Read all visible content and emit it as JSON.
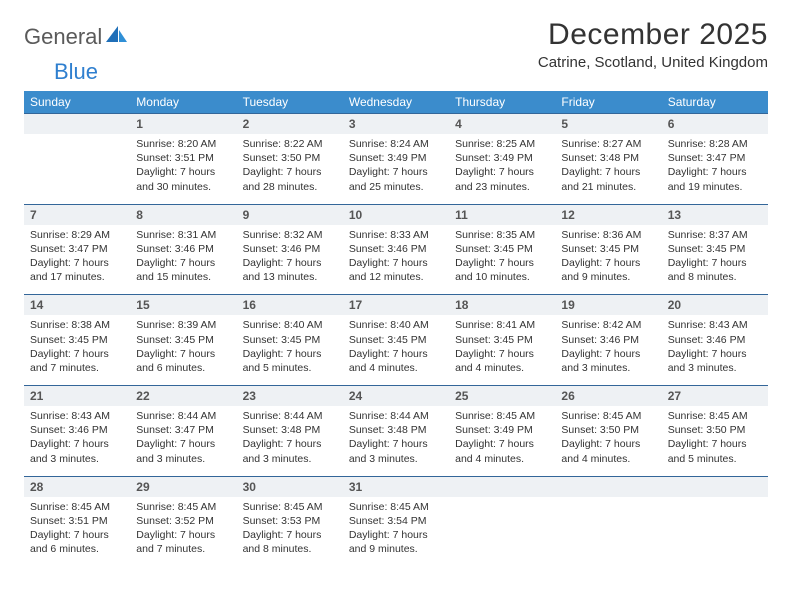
{
  "brand": {
    "word1": "General",
    "word2": "Blue"
  },
  "title": "December 2025",
  "location": "Catrine, Scotland, United Kingdom",
  "colors": {
    "header_bg": "#3b8ccc",
    "header_text": "#ffffff",
    "daynum_bg": "#eef1f4",
    "daynum_border": "#336699",
    "body_text": "#333333",
    "logo_gray": "#5a5a5a",
    "logo_blue": "#2f7fcf"
  },
  "dow": [
    "Sunday",
    "Monday",
    "Tuesday",
    "Wednesday",
    "Thursday",
    "Friday",
    "Saturday"
  ],
  "weeks": [
    [
      null,
      {
        "n": "1",
        "sr": "Sunrise: 8:20 AM",
        "ss": "Sunset: 3:51 PM",
        "dl": "Daylight: 7 hours and 30 minutes."
      },
      {
        "n": "2",
        "sr": "Sunrise: 8:22 AM",
        "ss": "Sunset: 3:50 PM",
        "dl": "Daylight: 7 hours and 28 minutes."
      },
      {
        "n": "3",
        "sr": "Sunrise: 8:24 AM",
        "ss": "Sunset: 3:49 PM",
        "dl": "Daylight: 7 hours and 25 minutes."
      },
      {
        "n": "4",
        "sr": "Sunrise: 8:25 AM",
        "ss": "Sunset: 3:49 PM",
        "dl": "Daylight: 7 hours and 23 minutes."
      },
      {
        "n": "5",
        "sr": "Sunrise: 8:27 AM",
        "ss": "Sunset: 3:48 PM",
        "dl": "Daylight: 7 hours and 21 minutes."
      },
      {
        "n": "6",
        "sr": "Sunrise: 8:28 AM",
        "ss": "Sunset: 3:47 PM",
        "dl": "Daylight: 7 hours and 19 minutes."
      }
    ],
    [
      {
        "n": "7",
        "sr": "Sunrise: 8:29 AM",
        "ss": "Sunset: 3:47 PM",
        "dl": "Daylight: 7 hours and 17 minutes."
      },
      {
        "n": "8",
        "sr": "Sunrise: 8:31 AM",
        "ss": "Sunset: 3:46 PM",
        "dl": "Daylight: 7 hours and 15 minutes."
      },
      {
        "n": "9",
        "sr": "Sunrise: 8:32 AM",
        "ss": "Sunset: 3:46 PM",
        "dl": "Daylight: 7 hours and 13 minutes."
      },
      {
        "n": "10",
        "sr": "Sunrise: 8:33 AM",
        "ss": "Sunset: 3:46 PM",
        "dl": "Daylight: 7 hours and 12 minutes."
      },
      {
        "n": "11",
        "sr": "Sunrise: 8:35 AM",
        "ss": "Sunset: 3:45 PM",
        "dl": "Daylight: 7 hours and 10 minutes."
      },
      {
        "n": "12",
        "sr": "Sunrise: 8:36 AM",
        "ss": "Sunset: 3:45 PM",
        "dl": "Daylight: 7 hours and 9 minutes."
      },
      {
        "n": "13",
        "sr": "Sunrise: 8:37 AM",
        "ss": "Sunset: 3:45 PM",
        "dl": "Daylight: 7 hours and 8 minutes."
      }
    ],
    [
      {
        "n": "14",
        "sr": "Sunrise: 8:38 AM",
        "ss": "Sunset: 3:45 PM",
        "dl": "Daylight: 7 hours and 7 minutes."
      },
      {
        "n": "15",
        "sr": "Sunrise: 8:39 AM",
        "ss": "Sunset: 3:45 PM",
        "dl": "Daylight: 7 hours and 6 minutes."
      },
      {
        "n": "16",
        "sr": "Sunrise: 8:40 AM",
        "ss": "Sunset: 3:45 PM",
        "dl": "Daylight: 7 hours and 5 minutes."
      },
      {
        "n": "17",
        "sr": "Sunrise: 8:40 AM",
        "ss": "Sunset: 3:45 PM",
        "dl": "Daylight: 7 hours and 4 minutes."
      },
      {
        "n": "18",
        "sr": "Sunrise: 8:41 AM",
        "ss": "Sunset: 3:45 PM",
        "dl": "Daylight: 7 hours and 4 minutes."
      },
      {
        "n": "19",
        "sr": "Sunrise: 8:42 AM",
        "ss": "Sunset: 3:46 PM",
        "dl": "Daylight: 7 hours and 3 minutes."
      },
      {
        "n": "20",
        "sr": "Sunrise: 8:43 AM",
        "ss": "Sunset: 3:46 PM",
        "dl": "Daylight: 7 hours and 3 minutes."
      }
    ],
    [
      {
        "n": "21",
        "sr": "Sunrise: 8:43 AM",
        "ss": "Sunset: 3:46 PM",
        "dl": "Daylight: 7 hours and 3 minutes."
      },
      {
        "n": "22",
        "sr": "Sunrise: 8:44 AM",
        "ss": "Sunset: 3:47 PM",
        "dl": "Daylight: 7 hours and 3 minutes."
      },
      {
        "n": "23",
        "sr": "Sunrise: 8:44 AM",
        "ss": "Sunset: 3:48 PM",
        "dl": "Daylight: 7 hours and 3 minutes."
      },
      {
        "n": "24",
        "sr": "Sunrise: 8:44 AM",
        "ss": "Sunset: 3:48 PM",
        "dl": "Daylight: 7 hours and 3 minutes."
      },
      {
        "n": "25",
        "sr": "Sunrise: 8:45 AM",
        "ss": "Sunset: 3:49 PM",
        "dl": "Daylight: 7 hours and 4 minutes."
      },
      {
        "n": "26",
        "sr": "Sunrise: 8:45 AM",
        "ss": "Sunset: 3:50 PM",
        "dl": "Daylight: 7 hours and 4 minutes."
      },
      {
        "n": "27",
        "sr": "Sunrise: 8:45 AM",
        "ss": "Sunset: 3:50 PM",
        "dl": "Daylight: 7 hours and 5 minutes."
      }
    ],
    [
      {
        "n": "28",
        "sr": "Sunrise: 8:45 AM",
        "ss": "Sunset: 3:51 PM",
        "dl": "Daylight: 7 hours and 6 minutes."
      },
      {
        "n": "29",
        "sr": "Sunrise: 8:45 AM",
        "ss": "Sunset: 3:52 PM",
        "dl": "Daylight: 7 hours and 7 minutes."
      },
      {
        "n": "30",
        "sr": "Sunrise: 8:45 AM",
        "ss": "Sunset: 3:53 PM",
        "dl": "Daylight: 7 hours and 8 minutes."
      },
      {
        "n": "31",
        "sr": "Sunrise: 8:45 AM",
        "ss": "Sunset: 3:54 PM",
        "dl": "Daylight: 7 hours and 9 minutes."
      },
      null,
      null,
      null
    ]
  ]
}
